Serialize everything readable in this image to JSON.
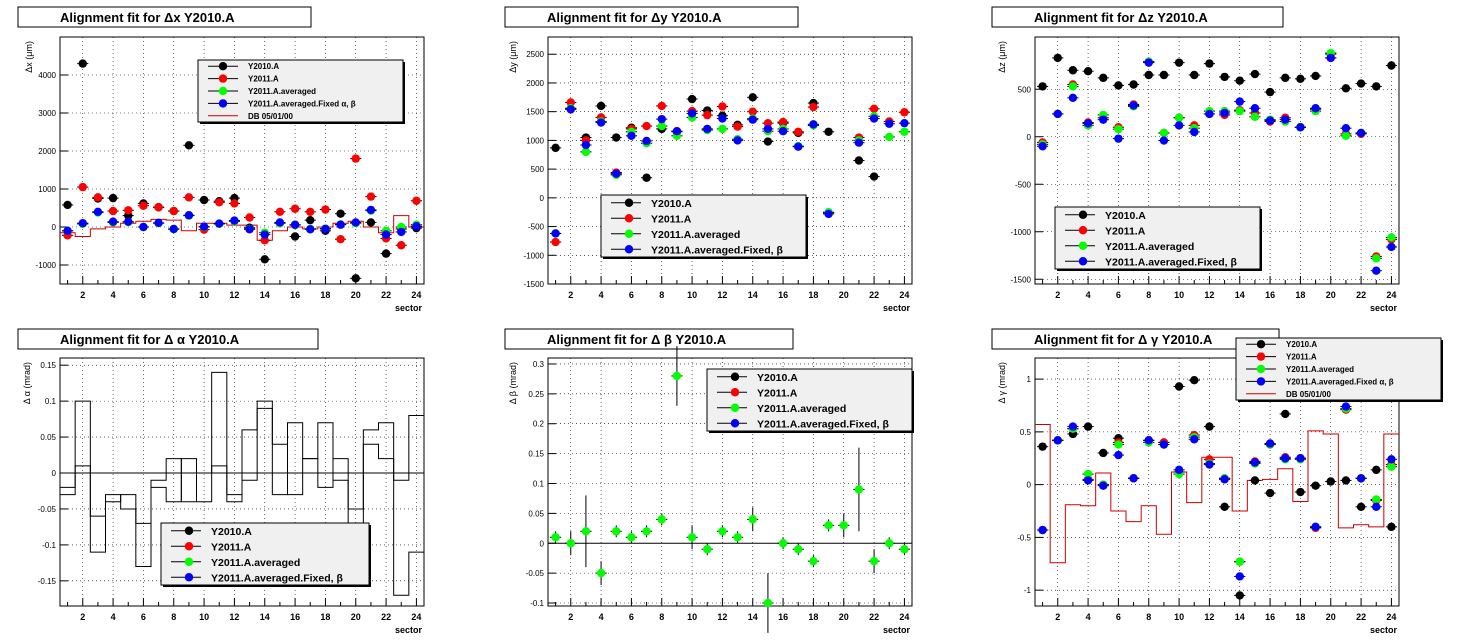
{
  "colors": {
    "Y2010.A": "#000000",
    "Y2011.A": "#ff0000",
    "Y2011.A.averaged": "#00ff00",
    "Y2011.A.averaged.Fixed": "#0000ff",
    "DB": "#cc0000",
    "zero_line": "#000000"
  },
  "chart_data": [
    {
      "id": "dx",
      "type": "scatter",
      "title_prefix": "Alignment fit for",
      "title_var": "Δx Y2010.A",
      "ylabel": "Δx (μm)",
      "xlabel": "sector",
      "xlim": [
        0.5,
        24.5
      ],
      "ylim": [
        -1500,
        5000
      ],
      "xticks": [
        2,
        4,
        6,
        8,
        10,
        12,
        14,
        16,
        18,
        20,
        22,
        24
      ],
      "yticks": [
        -1000,
        0,
        1000,
        2000,
        3000,
        4000
      ],
      "grid": true,
      "legend_style": "small",
      "legend": [
        "Y2010.A",
        "Y2011.A",
        "Y2011.A.averaged",
        "Y2011.A.averaged.Fixed α, β",
        "DB 05/01/00"
      ],
      "series": [
        {
          "name": "Y2010.A",
          "values": [
            580,
            4300,
            750,
            760,
            300,
            620,
            520,
            420,
            2150,
            710,
            680,
            760,
            -20,
            -850,
            100,
            -250,
            180,
            -100,
            350,
            -1350,
            120,
            -700,
            -50,
            -30
          ]
        },
        {
          "name": "Y2011.A",
          "values": [
            -220,
            1050,
            780,
            420,
            440,
            560,
            520,
            420,
            780,
            -70,
            650,
            620,
            250,
            -350,
            400,
            480,
            400,
            460,
            -320,
            1800,
            800,
            -300,
            -480,
            690
          ]
        },
        {
          "name": "Y2011.A.averaged",
          "values": [
            -100,
            80,
            380,
            120,
            130,
            0,
            100,
            -60,
            300,
            0,
            80,
            150,
            -50,
            -150,
            100,
            50,
            -50,
            -40,
            70,
            100,
            430,
            -100,
            0,
            60
          ]
        },
        {
          "name": "Y2011.A.averaged.Fixed",
          "values": [
            -100,
            100,
            400,
            140,
            140,
            0,
            110,
            -50,
            310,
            10,
            90,
            170,
            -60,
            -200,
            120,
            60,
            -60,
            -50,
            60,
            120,
            450,
            -200,
            -130,
            20
          ]
        }
      ],
      "db_step": [
        -150,
        -250,
        -50,
        0,
        100,
        150,
        200,
        180,
        -100,
        100,
        100,
        50,
        50,
        -350,
        -100,
        0,
        -50,
        0,
        100,
        150,
        0,
        -150,
        300,
        0
      ],
      "zero_line": false
    },
    {
      "id": "dy",
      "type": "scatter",
      "title_prefix": "Alignment fit for",
      "title_var": "Δy Y2010.A",
      "ylabel": "Δy (μm)",
      "xlabel": "sector",
      "xlim": [
        0.5,
        24.5
      ],
      "ylim": [
        -1500,
        2800
      ],
      "xticks": [
        2,
        4,
        6,
        8,
        10,
        12,
        14,
        16,
        18,
        20,
        22,
        24
      ],
      "yticks": [
        -1500,
        -1000,
        -500,
        0,
        500,
        1000,
        1500,
        2000,
        2500
      ],
      "grid": true,
      "legend_style": "large",
      "legend": [
        "Y2010.A",
        "Y2011.A",
        "Y2011.A.averaged",
        "Y2011.A.averaged.Fixed, β"
      ],
      "series": [
        {
          "name": "Y2010.A",
          "values": [
            870,
            1550,
            1050,
            1600,
            1050,
            1220,
            350,
            1200,
            1150,
            1720,
            1520,
            1430,
            1270,
            1750,
            980,
            1300,
            1130,
            1650,
            1150,
            null,
            650,
            370,
            null,
            null
          ]
        },
        {
          "name": "Y2011.A",
          "values": [
            -770,
            1660,
            1000,
            1400,
            440,
            1200,
            1250,
            1600,
            1160,
            1510,
            1440,
            1590,
            1240,
            1500,
            1300,
            1320,
            1150,
            1580,
            -260,
            null,
            1050,
            1550,
            1330,
            1490
          ]
        },
        {
          "name": "Y2011.A.averaged",
          "values": [
            -620,
            1560,
            800,
            1330,
            400,
            1150,
            950,
            1250,
            1080,
            1400,
            1180,
            1200,
            1020,
            1380,
            1160,
            1200,
            900,
            1260,
            -250,
            null,
            1000,
            1420,
            1060,
            1150
          ]
        },
        {
          "name": "Y2011.A.averaged.Fixed",
          "values": [
            -620,
            1540,
            920,
            1310,
            420,
            1080,
            990,
            1370,
            1160,
            1470,
            1200,
            1380,
            1000,
            1360,
            1200,
            1160,
            890,
            1280,
            -280,
            null,
            960,
            1380,
            1290,
            1300
          ]
        }
      ],
      "zero_line": false
    },
    {
      "id": "dz",
      "type": "scatter",
      "title_prefix": "Alignment fit for",
      "title_var": "Δz Y2010.A",
      "ylabel": "Δz (μm)",
      "xlabel": "sector",
      "xlim": [
        0.5,
        24.5
      ],
      "ylim": [
        -1550,
        1050
      ],
      "xticks": [
        2,
        4,
        6,
        8,
        10,
        12,
        14,
        16,
        18,
        20,
        22,
        24
      ],
      "yticks": [
        -1500,
        -1000,
        -500,
        0,
        500
      ],
      "grid": true,
      "legend_style": "large",
      "legend": [
        "Y2010.A",
        "Y2011.A",
        "Y2011.A.averaged",
        "Y2011.A.averaged.Fixed, β"
      ],
      "series": [
        {
          "name": "Y2010.A",
          "values": [
            530,
            830,
            700,
            690,
            620,
            540,
            550,
            650,
            650,
            780,
            650,
            770,
            630,
            590,
            660,
            470,
            620,
            610,
            640,
            870,
            510,
            560,
            530,
            750
          ]
        },
        {
          "name": "Y2011.A",
          "values": [
            -60,
            240,
            550,
            150,
            200,
            100,
            340,
            790,
            40,
            200,
            120,
            240,
            230,
            280,
            250,
            160,
            200,
            100,
            290,
            830,
            30,
            30,
            -1260,
            -1080
          ]
        },
        {
          "name": "Y2011.A.averaged",
          "values": [
            -80,
            240,
            530,
            120,
            230,
            80,
            320,
            790,
            40,
            200,
            90,
            270,
            270,
            270,
            210,
            180,
            160,
            100,
            270,
            880,
            10,
            40,
            -1280,
            -1060
          ]
        },
        {
          "name": "Y2011.A.averaged.Fixed",
          "values": [
            -100,
            240,
            410,
            140,
            180,
            -20,
            330,
            780,
            -40,
            120,
            50,
            240,
            250,
            370,
            300,
            170,
            180,
            100,
            300,
            830,
            90,
            40,
            -1410,
            -1160
          ]
        }
      ],
      "zero_line": false
    },
    {
      "id": "dalpha",
      "type": "step",
      "title_prefix": "Alignment fit for",
      "title_var": "Δ α Y2010.A",
      "ylabel": "Δ α (mrad)",
      "xlabel": "sector",
      "xlim": [
        0.5,
        24.5
      ],
      "ylim": [
        -0.185,
        0.16
      ],
      "xticks": [
        2,
        4,
        6,
        8,
        10,
        12,
        14,
        16,
        18,
        20,
        22,
        24
      ],
      "yticks": [
        -0.15,
        -0.1,
        -0.05,
        0,
        0.05,
        0.1,
        0.15
      ],
      "grid": true,
      "legend_style": "large",
      "legend": [
        "Y2010.A",
        "Y2011.A",
        "Y2011.A.averaged",
        "Y2011.A.averaged.Fixed, β"
      ],
      "steps": [
        [
          -0.03,
          0.1,
          -0.06,
          -0.04,
          -0.03,
          -0.07,
          -0.01,
          0.02,
          -0.04,
          0.0,
          0.14,
          -0.03,
          0.06,
          0.1,
          -0.03,
          0.07,
          0.02,
          0.07,
          -0.01,
          -0.05,
          0.06,
          0.07,
          -0.01,
          0.08
        ],
        [
          -0.02,
          0.01,
          -0.11,
          -0.03,
          -0.05,
          -0.13,
          -0.02,
          -0.04,
          0.02,
          -0.04,
          0.01,
          -0.04,
          -0.01,
          0.09,
          0.04,
          -0.03,
          0.02,
          -0.02,
          0.02,
          -0.09,
          0.04,
          0.02,
          -0.17,
          -0.11
        ]
      ],
      "zero_line": true
    },
    {
      "id": "dbeta",
      "type": "scatter",
      "title_prefix": "Alignment fit for",
      "title_var": "Δ β Y2010.A",
      "ylabel": "Δ β (mrad)",
      "xlabel": "sector",
      "xlim": [
        0.5,
        24.5
      ],
      "ylim": [
        -0.105,
        0.31
      ],
      "xticks": [
        2,
        4,
        6,
        8,
        10,
        12,
        14,
        16,
        18,
        20,
        22,
        24
      ],
      "yticks": [
        -0.1,
        -0.05,
        0,
        0.05,
        0.1,
        0.15,
        0.2,
        0.25,
        0.3
      ],
      "grid": true,
      "legend_style": "large",
      "legend": [
        "Y2010.A",
        "Y2011.A",
        "Y2011.A.averaged",
        "Y2011.A.averaged.Fixed, β"
      ],
      "series": [
        {
          "name": "Y2011.A.averaged",
          "values": [
            0.01,
            0.0,
            0.02,
            -0.05,
            0.02,
            0.01,
            0.02,
            0.04,
            0.28,
            0.01,
            -0.01,
            0.02,
            0.01,
            0.04,
            -0.1,
            0.0,
            -0.01,
            -0.03,
            0.03,
            0.03,
            0.09,
            -0.03,
            0.0,
            -0.01
          ],
          "errors": [
            0.01,
            0.02,
            0.06,
            0.02,
            0.01,
            0.01,
            0.01,
            0.01,
            0.05,
            0.02,
            0.01,
            0.01,
            0.01,
            0.02,
            0.05,
            0.01,
            0.01,
            0.01,
            0.01,
            0.02,
            0.07,
            0.02,
            0.01,
            0.01
          ]
        }
      ],
      "zero_line": true
    },
    {
      "id": "dgamma",
      "type": "scatter",
      "title_prefix": "Alignment fit for",
      "title_var": "Δ γ Y2010.A",
      "ylabel": "Δ γ (mrad)",
      "xlabel": "sector",
      "xlim": [
        0.5,
        24.5
      ],
      "ylim": [
        -1.15,
        1.2
      ],
      "xticks": [
        2,
        4,
        6,
        8,
        10,
        12,
        14,
        16,
        18,
        20,
        22,
        24
      ],
      "yticks": [
        -1,
        -0.5,
        0,
        0.5,
        1
      ],
      "grid": true,
      "legend_style": "small",
      "legend": [
        "Y2010.A",
        "Y2011.A",
        "Y2011.A.averaged",
        "Y2011.A.averaged.Fixed α, β",
        "DB 05/01/00"
      ],
      "series": [
        {
          "name": "Y2010.A",
          "values": [
            0.36,
            0.42,
            0.48,
            0.55,
            0.3,
            0.44,
            0.06,
            0.42,
            0.4,
            0.93,
            0.99,
            0.55,
            -0.21,
            -1.05,
            0.04,
            -0.08,
            0.67,
            -0.07,
            -0.01,
            0.03,
            0.04,
            -0.21,
            0.14,
            -0.4
          ]
        },
        {
          "name": "Y2011.A",
          "values": [
            -0.43,
            0.42,
            0.53,
            0.05,
            0.0,
            0.4,
            0.06,
            0.42,
            0.4,
            0.12,
            0.47,
            0.24,
            0.06,
            -0.73,
            0.22,
            0.38,
            0.26,
            0.25,
            -0.41,
            0.84,
            0.71,
            0.06,
            -0.15,
            0.19
          ]
        },
        {
          "name": "Y2011.A.averaged",
          "values": [
            -0.43,
            0.42,
            0.53,
            0.1,
            0.0,
            0.38,
            0.06,
            0.4,
            0.38,
            0.1,
            0.45,
            0.2,
            0.06,
            -0.73,
            0.2,
            0.38,
            0.24,
            0.24,
            -0.4,
            0.85,
            0.72,
            0.06,
            -0.14,
            0.17
          ]
        },
        {
          "name": "Y2011.A.averaged.Fixed",
          "values": [
            -0.43,
            0.42,
            0.55,
            0.04,
            -0.01,
            0.28,
            0.06,
            0.42,
            0.38,
            0.14,
            0.43,
            0.19,
            0.05,
            -0.87,
            0.21,
            0.39,
            0.25,
            0.25,
            -0.4,
            0.86,
            0.74,
            0.06,
            -0.21,
            0.24
          ]
        }
      ],
      "db_step": [
        0.57,
        -0.74,
        -0.19,
        -0.2,
        0.11,
        -0.25,
        -0.35,
        -0.2,
        -0.47,
        0.12,
        -0.17,
        0.26,
        0.26,
        -0.25,
        0.04,
        0.05,
        0.15,
        -0.16,
        0.51,
        0.48,
        -0.41,
        -0.38,
        -0.4,
        0.48
      ],
      "zero_line": false
    }
  ]
}
